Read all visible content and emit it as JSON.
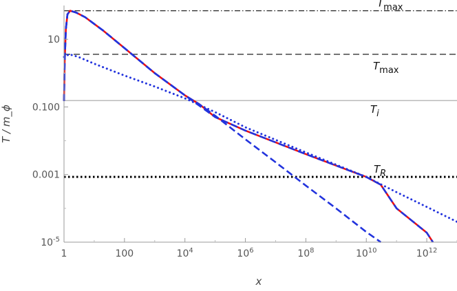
{
  "chart_data": {
    "type": "line",
    "xlabel": "x",
    "ylabel": "T / m_ϕ",
    "xscale": "log",
    "yscale": "log",
    "xlim": [
      1,
      10000000000000.0
    ],
    "ylim": [
      1e-05,
      100
    ],
    "grid": false,
    "legend": "none",
    "x_ticks": [
      {
        "value": 1,
        "label": "1"
      },
      {
        "value": 100,
        "label": "100"
      },
      {
        "value": 10000,
        "label": "10^4"
      },
      {
        "value": 1000000,
        "label": "10^6"
      },
      {
        "value": 100000000,
        "label": "10^8"
      },
      {
        "value": 10000000000,
        "label": "10^10"
      },
      {
        "value": 1000000000000,
        "label": "10^12"
      }
    ],
    "y_ticks": [
      {
        "value": 10,
        "label": "10"
      },
      {
        "value": 0.1,
        "label": "0.100"
      },
      {
        "value": 0.001,
        "label": "0.001"
      },
      {
        "value": 1e-05,
        "label": "10^-5"
      }
    ],
    "reference_lines": [
      {
        "label": "T̃_max",
        "y": 70,
        "color": "#222222",
        "style": "dashdot"
      },
      {
        "label": "T_max",
        "y": 3.6,
        "color": "#333333",
        "style": "dashed"
      },
      {
        "label": "T_i",
        "y": 0.155,
        "color": "#999999",
        "style": "solid"
      },
      {
        "label": "T_R",
        "y": 0.00085,
        "color": "#000000",
        "style": "dotted"
      }
    ],
    "series": [
      {
        "color": "#ee1111",
        "style": "solid",
        "points": [
          [
            1,
            0.15
          ],
          [
            1.05,
            2
          ],
          [
            1.15,
            20
          ],
          [
            1.3,
            55
          ],
          [
            1.6,
            70
          ],
          [
            2.5,
            62
          ],
          [
            5,
            45
          ],
          [
            20,
            18
          ],
          [
            100,
            5.5
          ],
          [
            1000,
            1.0
          ],
          [
            10000,
            0.22
          ],
          [
            30000,
            0.12
          ],
          [
            100000,
            0.05
          ],
          [
            1000000,
            0.02
          ],
          [
            100000000,
            0.004
          ],
          [
            10000000000,
            0.00085
          ],
          [
            30000000000,
            0.0005
          ],
          [
            100000000000,
            0.0001
          ],
          [
            1000000000000,
            1.9e-05
          ],
          [
            1600000000000,
            1e-05
          ]
        ]
      },
      {
        "color": "#2233dd",
        "style": "dashed",
        "points": [
          [
            1,
            0.15
          ],
          [
            1.05,
            2
          ],
          [
            1.15,
            20
          ],
          [
            1.3,
            55
          ],
          [
            1.6,
            70
          ],
          [
            2.5,
            62
          ],
          [
            5,
            45
          ],
          [
            20,
            18
          ],
          [
            100,
            5.5
          ],
          [
            1000,
            1.0
          ],
          [
            10000,
            0.22
          ],
          [
            30000,
            0.12
          ],
          [
            100000,
            0.055
          ],
          [
            1000000,
            0.011
          ],
          [
            10000000,
            0.0023
          ],
          [
            100000000,
            0.00047
          ],
          [
            1000000000,
            0.0001
          ],
          [
            10000000000,
            2e-05
          ],
          [
            30000000000,
            1e-05
          ]
        ]
      },
      {
        "color": "#2233dd",
        "style": "dashed",
        "points": [
          [
            1,
            0.15
          ],
          [
            1.05,
            2
          ],
          [
            1.15,
            20
          ],
          [
            1.3,
            55
          ],
          [
            1.6,
            70
          ],
          [
            2.5,
            62
          ],
          [
            5,
            45
          ],
          [
            20,
            18
          ],
          [
            100,
            5.5
          ],
          [
            1000,
            1.0
          ],
          [
            10000,
            0.22
          ],
          [
            100000,
            0.05
          ],
          [
            1000000,
            0.02
          ],
          [
            100000000,
            0.004
          ],
          [
            10000000000,
            0.00085
          ],
          [
            30000000000,
            0.0005
          ],
          [
            100000000000,
            0.0001
          ],
          [
            1000000000000,
            1.9e-05
          ],
          [
            1600000000000,
            1e-05
          ]
        ]
      },
      {
        "color": "#2233dd",
        "style": "dotted",
        "points": [
          [
            1,
            3.0
          ],
          [
            1.5,
            3.6
          ],
          [
            3,
            3.0
          ],
          [
            10,
            1.9
          ],
          [
            100,
            0.85
          ],
          [
            1000,
            0.4
          ],
          [
            10000,
            0.18
          ],
          [
            100000,
            0.07
          ],
          [
            1000000,
            0.025
          ],
          [
            100000000,
            0.0045
          ],
          [
            10000000000,
            0.00085
          ],
          [
            100000000000,
            0.0003
          ],
          [
            1000000000000,
            0.00011
          ],
          [
            10000000000000,
            4e-05
          ]
        ]
      }
    ]
  }
}
